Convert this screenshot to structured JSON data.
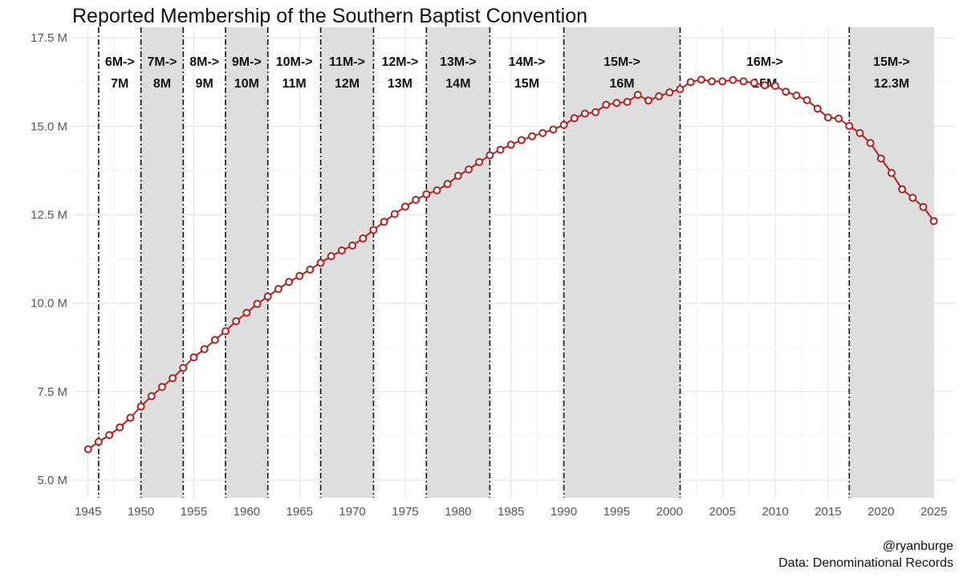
{
  "chart_data": {
    "type": "line",
    "title": "Reported Membership of the Southern Baptist Convention",
    "xlabel": "",
    "ylabel": "",
    "xlim": [
      1943.5,
      2027
    ],
    "ylim": [
      4.5,
      17.8
    ],
    "x_ticks": [
      1945,
      1950,
      1955,
      1960,
      1965,
      1970,
      1975,
      1980,
      1985,
      1990,
      1995,
      2000,
      2005,
      2010,
      2015,
      2020,
      2025
    ],
    "x_tick_labels": [
      "1945",
      "1950",
      "1955",
      "1960",
      "1965",
      "1970",
      "1975",
      "1980",
      "1985",
      "1990",
      "1995",
      "2000",
      "2005",
      "2010",
      "2015",
      "2020",
      "2025"
    ],
    "y_ticks": [
      5.0,
      7.5,
      10.0,
      12.5,
      15.0,
      17.5
    ],
    "y_tick_labels": [
      "5.0 M",
      "7.5 M",
      "10.0 M",
      "12.5 M",
      "15.0 M",
      "17.5 M"
    ],
    "grid": true,
    "line_color": "#b22222",
    "band_color": "#dcdcdc",
    "series": [
      {
        "x": [
          1945,
          1946,
          1947,
          1948,
          1949,
          1950,
          1951,
          1952,
          1953,
          1954,
          1955,
          1956,
          1957,
          1958,
          1959,
          1960,
          1961,
          1962,
          1963,
          1964,
          1965,
          1966,
          1967,
          1968,
          1969,
          1970,
          1971,
          1972,
          1973,
          1974,
          1975,
          1976,
          1977,
          1978,
          1979,
          1980,
          1981,
          1982,
          1983,
          1984,
          1985,
          1986,
          1987,
          1988,
          1989,
          1990,
          1991,
          1992,
          1993,
          1994,
          1995,
          1996,
          1997,
          1998,
          1999,
          2000,
          2001,
          2002,
          2003,
          2004,
          2005,
          2006,
          2007,
          2008,
          2009,
          2010,
          2011,
          2012,
          2013,
          2014,
          2015,
          2016,
          2017,
          2018,
          2019,
          2020,
          2021,
          2022,
          2023,
          2024,
          2025
        ],
        "y": [
          5.87,
          6.08,
          6.27,
          6.49,
          6.76,
          7.08,
          7.37,
          7.63,
          7.88,
          8.17,
          8.47,
          8.7,
          8.96,
          9.21,
          9.49,
          9.73,
          9.98,
          10.19,
          10.4,
          10.6,
          10.77,
          10.95,
          11.14,
          11.33,
          11.49,
          11.63,
          11.83,
          12.07,
          12.3,
          12.52,
          12.73,
          12.92,
          13.08,
          13.19,
          13.37,
          13.6,
          13.78,
          13.99,
          14.18,
          14.34,
          14.48,
          14.61,
          14.72,
          14.81,
          14.91,
          15.04,
          15.23,
          15.36,
          15.4,
          15.61,
          15.66,
          15.69,
          15.89,
          15.73,
          15.85,
          15.96,
          16.05,
          16.25,
          16.32,
          16.27,
          16.27,
          16.31,
          16.27,
          16.23,
          16.16,
          16.14,
          15.98,
          15.87,
          15.74,
          15.5,
          15.25,
          15.22,
          15.01,
          14.81,
          14.53,
          14.09,
          13.68,
          13.22,
          12.98,
          12.72,
          12.32
        ]
      }
    ],
    "bands": [
      {
        "x0": 1946,
        "x1": 1950,
        "shaded": false,
        "label": [
          "6M->",
          "7M"
        ]
      },
      {
        "x0": 1950,
        "x1": 1954,
        "shaded": true,
        "label": [
          "7M->",
          "8M"
        ]
      },
      {
        "x0": 1954,
        "x1": 1958,
        "shaded": false,
        "label": [
          "8M->",
          "9M"
        ]
      },
      {
        "x0": 1958,
        "x1": 1962,
        "shaded": true,
        "label": [
          "9M->",
          "10M"
        ]
      },
      {
        "x0": 1962,
        "x1": 1967,
        "shaded": false,
        "label": [
          "10M->",
          "11M"
        ]
      },
      {
        "x0": 1967,
        "x1": 1972,
        "shaded": true,
        "label": [
          "11M->",
          "12M"
        ]
      },
      {
        "x0": 1972,
        "x1": 1977,
        "shaded": false,
        "label": [
          "12M->",
          "13M"
        ]
      },
      {
        "x0": 1977,
        "x1": 1983,
        "shaded": true,
        "label": [
          "13M->",
          "14M"
        ]
      },
      {
        "x0": 1983,
        "x1": 1990,
        "shaded": false,
        "label": [
          "14M->",
          "15M"
        ]
      },
      {
        "x0": 1990,
        "x1": 2001,
        "shaded": true,
        "label": [
          "15M->",
          "16M"
        ]
      },
      {
        "x0": 2001,
        "x1": 2017,
        "shaded": false,
        "label": [
          "16M->",
          "15M"
        ]
      },
      {
        "x0": 2017,
        "x1": 2025,
        "shaded": true,
        "label": [
          "15M->",
          "12.3M"
        ]
      }
    ],
    "dashed_lines": [
      1946,
      1950,
      1954,
      1958,
      1962,
      1967,
      1972,
      1977,
      1983,
      1990,
      2001,
      2017
    ]
  },
  "caption": {
    "handle": "@ryanburge",
    "source": "Data: Denominational Records"
  }
}
